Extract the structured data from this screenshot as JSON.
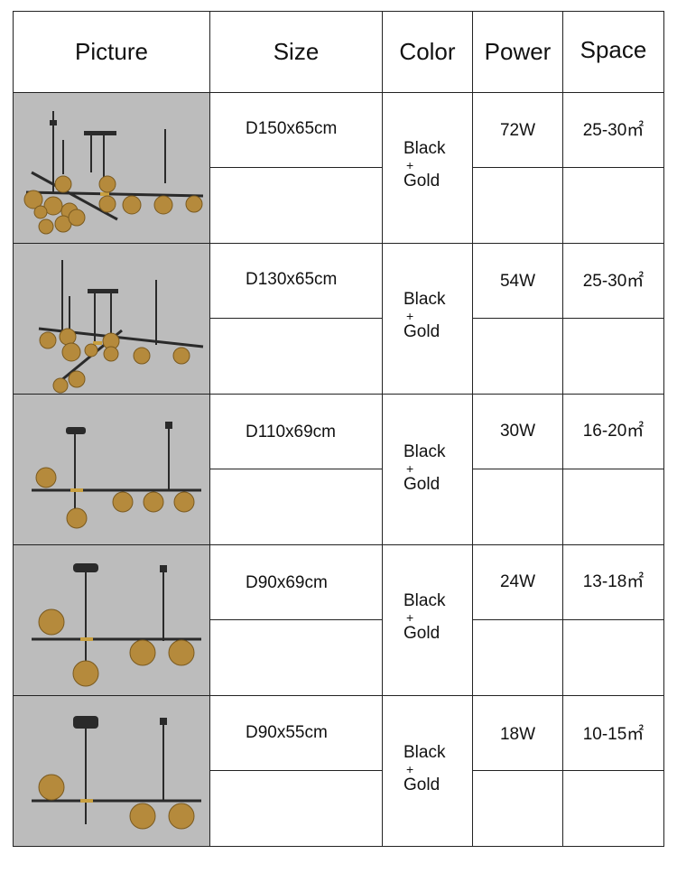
{
  "header": {
    "picture": "Picture",
    "size": "Size",
    "color": "Color",
    "power": "Power",
    "space": "Space"
  },
  "rows": [
    {
      "size": "D150x65cm",
      "color_top": "Black",
      "color_plus": "+",
      "color_bottom": "Gold",
      "power": "72W",
      "space": "25-30㎡",
      "picture_icon": "chandelier-13-globes-icon"
    },
    {
      "size": "D130x65cm",
      "color_top": "Black",
      "color_plus": "+",
      "color_bottom": "Gold",
      "power": "54W",
      "space": "25-30㎡",
      "picture_icon": "chandelier-10-globes-icon"
    },
    {
      "size": "D110x69cm",
      "color_top": "Black",
      "color_plus": "+",
      "color_bottom": "Gold",
      "power": "30W",
      "space": "16-20㎡",
      "picture_icon": "chandelier-5-globes-icon"
    },
    {
      "size": "D90x69cm",
      "color_top": "Black",
      "color_plus": "+",
      "color_bottom": "Gold",
      "power": "24W",
      "space": "13-18㎡",
      "picture_icon": "chandelier-4-globes-icon"
    },
    {
      "size": "D90x55cm",
      "color_top": "Black",
      "color_plus": "+",
      "color_bottom": "Gold",
      "power": "18W",
      "space": "10-15㎡",
      "picture_icon": "chandelier-3-globes-icon"
    }
  ],
  "colors": {
    "border": "#222222",
    "picture_bg": "#bcbcbc",
    "rod": "#2a2a2a",
    "globe": "#b58a3c",
    "globe_glow": "#f3dc97",
    "accent_gold": "#c9a040"
  }
}
